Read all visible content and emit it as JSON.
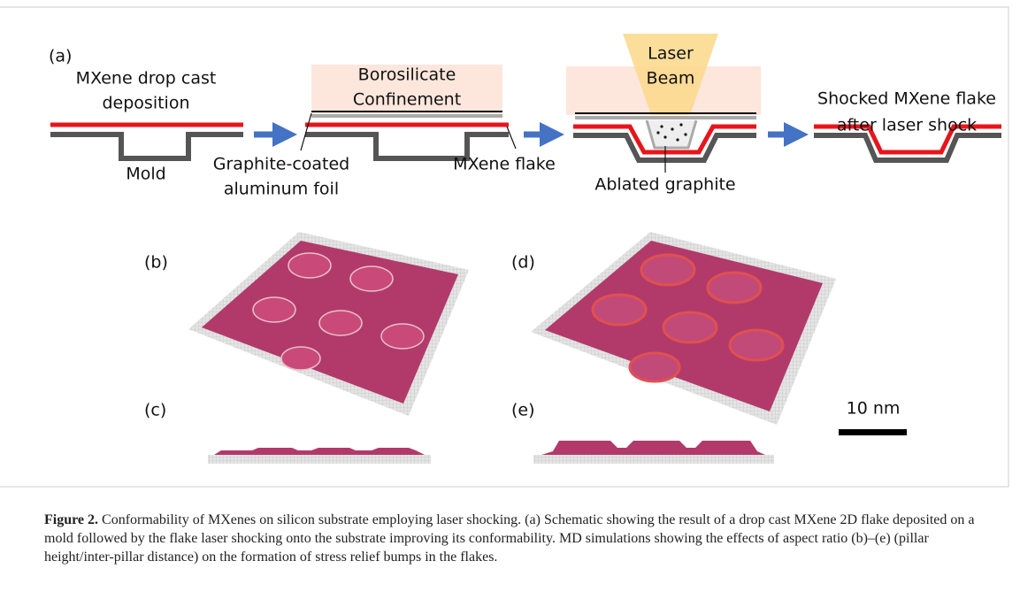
{
  "figure": {
    "panel_a": {
      "label": "(a)",
      "drop_cast": [
        "MXene drop cast",
        "deposition"
      ],
      "mold": "Mold",
      "confinement": [
        "Borosilicate",
        "Confinement"
      ],
      "foil": [
        "Graphite-coated",
        "aluminum foil"
      ],
      "flake": "MXene flake",
      "laser": [
        "Laser",
        "Beam"
      ],
      "ablated": "Ablated graphite",
      "shocked": [
        "Shocked MXene flake",
        "after laser shock"
      ]
    },
    "panel_labels": {
      "b": "(b)",
      "c": "(c)",
      "d": "(d)",
      "e": "(e)"
    },
    "scale_bar": "10 nm"
  },
  "caption": {
    "label": "Figure 2.",
    "text": "Conformability of MXenes on silicon substrate employing laser shocking. (a) Schematic showing the result of a drop cast MXene 2D flake deposited on a mold followed by the flake laser shocking onto the substrate improving its conformability. MD simulations showing the effects of aspect ratio (b)–(e) (pillar height/inter-pillar distance) on the formation of stress relief bumps in the flakes."
  }
}
